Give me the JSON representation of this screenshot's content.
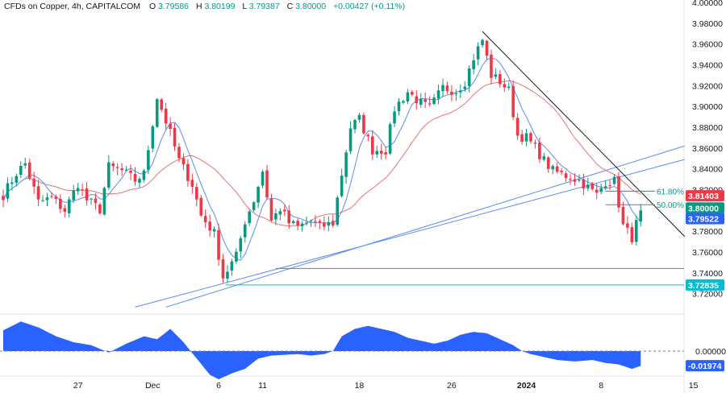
{
  "header": {
    "symbol": "CFDs on Copper, 4h, CAPITALCOM",
    "o_label": "O",
    "o_value": "3.79586",
    "h_label": "H",
    "h_value": "3.80199",
    "l_label": "L",
    "l_value": "3.79387",
    "c_label": "C",
    "c_value": "3.80000",
    "change": "+0.00427 (+0.11%)"
  },
  "chart_data": {
    "type": "candlestick",
    "y_axis": {
      "ticks": [
        "4.00000",
        "3.98000",
        "3.96000",
        "3.94000",
        "3.92000",
        "3.90000",
        "3.88000",
        "3.86000",
        "3.84000",
        "3.82000",
        "3.80000",
        "3.78000",
        "3.76000",
        "3.74000",
        "3.72000"
      ],
      "tick_values": [
        4.0,
        3.98,
        3.96,
        3.94,
        3.92,
        3.9,
        3.88,
        3.86,
        3.84,
        3.82,
        3.8,
        3.78,
        3.76,
        3.74,
        3.72
      ],
      "range": [
        3.705,
        4.0
      ]
    },
    "x_axis": {
      "ticks": [
        "27",
        "Dec",
        "6",
        "11",
        "18",
        "26",
        "2024",
        "8",
        "15"
      ],
      "tick_bars": [
        17,
        34,
        49,
        59,
        81,
        102,
        119,
        136,
        157
      ]
    },
    "bars_count": 146,
    "candle_anchors": [
      [
        0,
        3.815
      ],
      [
        3,
        3.836
      ],
      [
        5,
        3.845
      ],
      [
        8,
        3.808
      ],
      [
        11,
        3.812
      ],
      [
        14,
        3.8
      ],
      [
        17,
        3.826
      ],
      [
        19,
        3.81
      ],
      [
        22,
        3.801
      ],
      [
        24,
        3.842
      ],
      [
        27,
        3.838
      ],
      [
        30,
        3.829
      ],
      [
        32,
        3.835
      ],
      [
        35,
        3.909
      ],
      [
        38,
        3.874
      ],
      [
        40,
        3.848
      ],
      [
        43,
        3.825
      ],
      [
        45,
        3.795
      ],
      [
        48,
        3.778
      ],
      [
        50,
        3.736
      ],
      [
        53,
        3.756
      ],
      [
        55,
        3.79
      ],
      [
        57,
        3.81
      ],
      [
        59,
        3.838
      ],
      [
        61,
        3.79
      ],
      [
        63,
        3.802
      ],
      [
        65,
        3.788
      ],
      [
        67,
        3.784
      ],
      [
        70,
        3.79
      ],
      [
        72,
        3.784
      ],
      [
        75,
        3.788
      ],
      [
        77,
        3.835
      ],
      [
        79,
        3.88
      ],
      [
        81,
        3.888
      ],
      [
        84,
        3.858
      ],
      [
        87,
        3.858
      ],
      [
        89,
        3.898
      ],
      [
        92,
        3.914
      ],
      [
        95,
        3.903
      ],
      [
        97,
        3.898
      ],
      [
        100,
        3.918
      ],
      [
        103,
        3.915
      ],
      [
        105,
        3.924
      ],
      [
        107,
        3.947
      ],
      [
        109,
        3.964
      ],
      [
        111,
        3.93
      ],
      [
        113,
        3.924
      ],
      [
        115,
        3.915
      ],
      [
        117,
        3.872
      ],
      [
        119,
        3.87
      ],
      [
        121,
        3.86
      ],
      [
        123,
        3.848
      ],
      [
        125,
        3.838
      ],
      [
        127,
        3.835
      ],
      [
        129,
        3.832
      ],
      [
        131,
        3.829
      ],
      [
        133,
        3.822
      ],
      [
        135,
        3.815
      ],
      [
        137,
        3.828
      ],
      [
        139,
        3.828
      ],
      [
        141,
        3.785
      ],
      [
        143,
        3.774
      ],
      [
        145,
        3.8
      ]
    ],
    "resistance_line": {
      "from": [
        109,
        3.972
      ],
      "to": [
        155,
        3.775
      ]
    },
    "channel_lower": {
      "from": [
        30,
        3.707
      ],
      "to": [
        155,
        3.849
      ]
    },
    "channel_upper": {
      "from": [
        37,
        3.707
      ],
      "to": [
        155,
        3.862
      ]
    },
    "support_level": {
      "value": 3.7442,
      "from_bar": 62
    },
    "support_level_2": {
      "value": 3.72835
    },
    "fib_level_61": {
      "label": "61.80%",
      "value": 3.8185,
      "from_bar": 137
    },
    "fib_level_50": {
      "label": "50.00%",
      "value": 3.8055,
      "from_bar": 137
    },
    "price_labels": [
      {
        "text": "3.81403",
        "value": 3.81403,
        "color": "#f23645"
      },
      {
        "text": "3.80000",
        "value": 3.8,
        "color": "#089981"
      },
      {
        "text": "3.79522",
        "value": 3.79522,
        "color": "#2962ff"
      },
      {
        "text": "3.72835",
        "value": 3.72835,
        "color": "#00bcd4"
      }
    ],
    "moving_averages": [
      {
        "color": "#e57373",
        "length": 20
      },
      {
        "color": "#5b8def",
        "length": 6
      }
    ],
    "oscillator": {
      "ticks": [
        "0.00000"
      ],
      "current_label": "-0.01974",
      "current_value": -0.01974,
      "fill_color": "#2962ff",
      "anchors": [
        [
          0,
          0.028
        ],
        [
          4,
          0.04
        ],
        [
          8,
          0.032
        ],
        [
          12,
          0.02
        ],
        [
          16,
          0.012
        ],
        [
          20,
          0.008
        ],
        [
          24,
          -0.002
        ],
        [
          28,
          0.01
        ],
        [
          32,
          0.02
        ],
        [
          35,
          0.016
        ],
        [
          38,
          0.03
        ],
        [
          41,
          0.012
        ],
        [
          44,
          -0.01
        ],
        [
          47,
          -0.032
        ],
        [
          49,
          -0.038
        ],
        [
          52,
          -0.03
        ],
        [
          55,
          -0.024
        ],
        [
          58,
          -0.01
        ],
        [
          61,
          -0.006
        ],
        [
          64,
          -0.005
        ],
        [
          67,
          -0.004
        ],
        [
          70,
          -0.006
        ],
        [
          73,
          -0.004
        ],
        [
          75,
          0.0
        ],
        [
          77,
          0.02
        ],
        [
          80,
          0.03
        ],
        [
          83,
          0.034
        ],
        [
          86,
          0.03
        ],
        [
          89,
          0.026
        ],
        [
          92,
          0.018
        ],
        [
          95,
          0.014
        ],
        [
          98,
          0.01
        ],
        [
          101,
          0.014
        ],
        [
          104,
          0.022
        ],
        [
          107,
          0.026
        ],
        [
          110,
          0.024
        ],
        [
          113,
          0.016
        ],
        [
          116,
          0.008
        ],
        [
          118,
          0.0
        ],
        [
          120,
          -0.004
        ],
        [
          123,
          -0.008
        ],
        [
          126,
          -0.012
        ],
        [
          130,
          -0.014
        ],
        [
          134,
          -0.012
        ],
        [
          137,
          -0.016
        ],
        [
          140,
          -0.018
        ],
        [
          143,
          -0.024
        ],
        [
          145,
          -0.02
        ]
      ]
    },
    "colors": {
      "up": "#089981",
      "down": "#f23645",
      "trend": "#131722",
      "channel": "#5b8def"
    }
  }
}
